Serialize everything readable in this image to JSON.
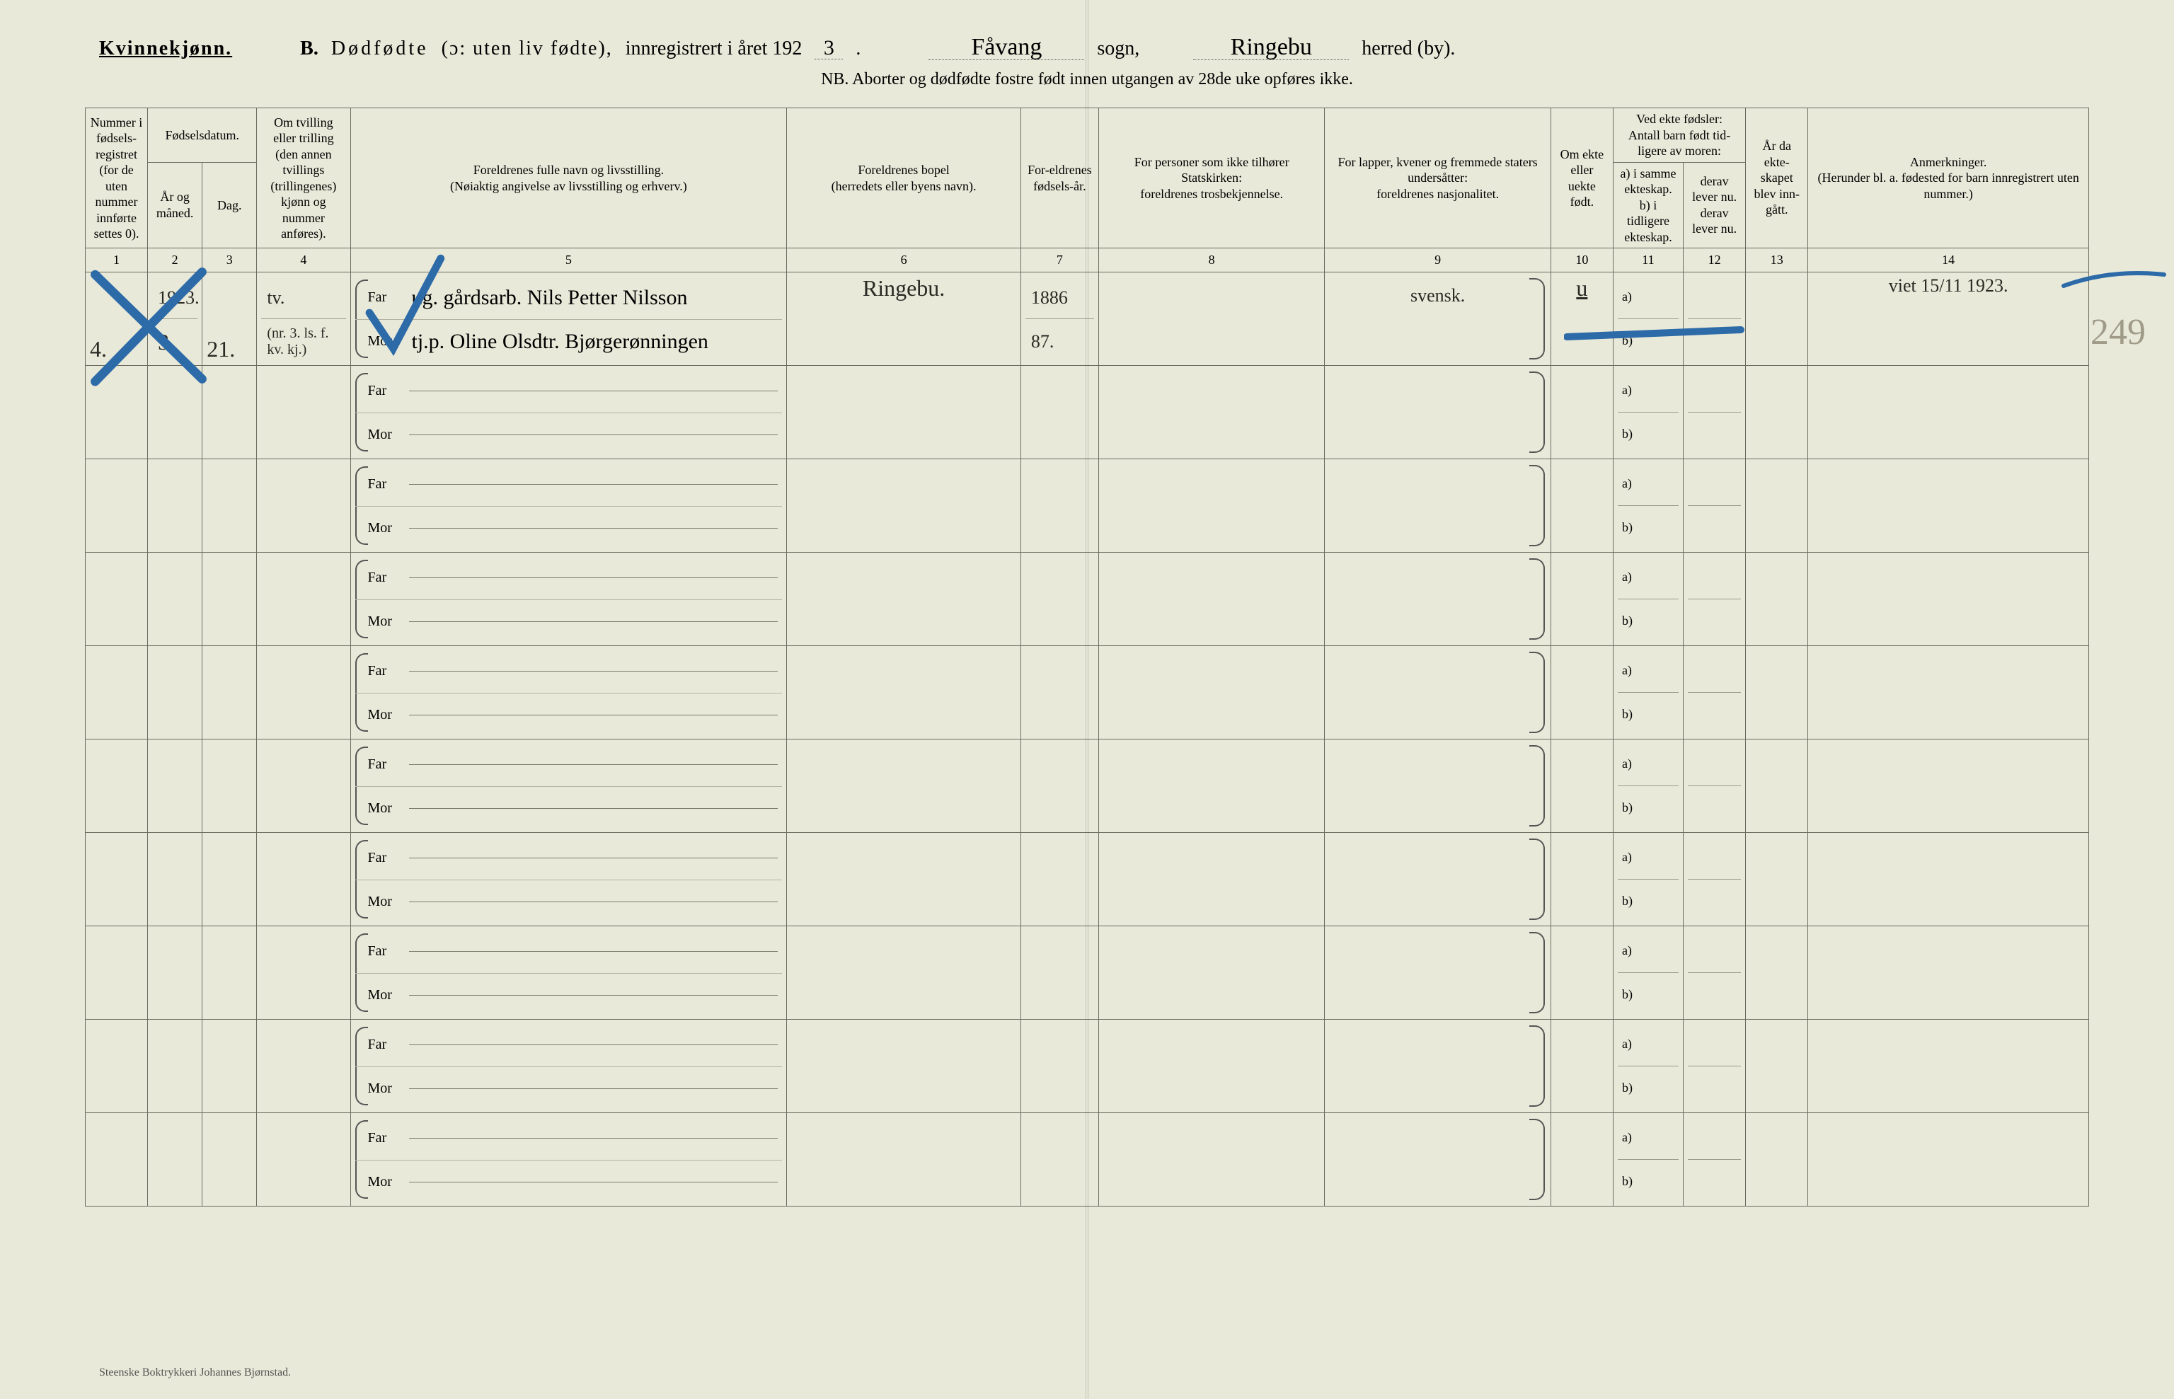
{
  "colors": {
    "paper": "#e8e9d9",
    "ink": "#2a2a24",
    "rule": "#6b6b5f",
    "pencil_blue": "#2c6aa8",
    "pencil_gray": "rgba(100,90,70,0.55)"
  },
  "header": {
    "gender_label": "Kvinnekjønn.",
    "section_letter": "B.",
    "title_main": "Dødfødte",
    "title_paren": "(ɔ: uten liv fødte),",
    "title_reg_prefix": "innregistrert i året 192",
    "year_suffix_hand": "3",
    "period": ".",
    "sogn_fill": "Fåvang",
    "sogn_label": "sogn,",
    "herred_fill": "Ringebu",
    "herred_label": "herred (by).",
    "nb_line": "NB.  Aborter og dødfødte fostre født innen utgangen av 28de uke opføres ikke."
  },
  "columns": {
    "h1": "Nummer i fødsels-registret (for de uten nummer innførte settes 0).",
    "h_fdat": "Fødselsdatum.",
    "h2": "År og måned.",
    "h3": "Dag.",
    "h4": "Om tvilling eller trilling (den annen tvillings (trillingenes) kjønn og nummer anføres).",
    "h5": "Foreldrenes fulle navn og livsstilling.\n(Nøiaktig angivelse av livsstilling og erhverv.)",
    "h6": "Foreldrenes bopel\n(herredets eller byens navn).",
    "h7": "For-eldrenes fødsels-år.",
    "h8": "For personer som ikke tilhører Statskirken:\nforeldrenes trosbekjennelse.",
    "h9": "For lapper, kvener og fremmede staters undersåtter:\nforeldrenes nasjonalitet.",
    "h10": "Om ekte eller uekte født.",
    "h_ved": "Ved ekte fødsler:\nAntall barn født tid-ligere av moren:",
    "h11": "a) i samme ekteskap.\nb) i tidligere ekteskap.",
    "h12": "derav lever nu.\nderav lever nu.",
    "h13": "År da ekte-skapet blev inn-gått.",
    "h14": "Anmerkninger.\n(Herunder bl. a. fødested for barn innregistrert uten nummer.)",
    "numbers": [
      "1",
      "2",
      "3",
      "4",
      "5",
      "6",
      "7",
      "8",
      "9",
      "10",
      "11",
      "12",
      "13",
      "14"
    ]
  },
  "row_labels": {
    "far": "Far",
    "mor": "Mor",
    "a": "a)",
    "b": "b)"
  },
  "entry": {
    "col1": "4.",
    "col2_top": "1923.",
    "col2_bot": "3",
    "col3": "21.",
    "col4_top": "tv.",
    "col4_bot": "(nr. 3. ls. f. kv. kj.)",
    "far_text": "ug. gårdsarb. Nils Petter Nilsson",
    "mor_text": "tj.p. Oline Olsdtr. Bjørgerønningen",
    "col6": "Ringebu.",
    "col7_far": "1886",
    "col7_mor": "87.",
    "col8": "",
    "col9": "svensk.",
    "col10": "u",
    "col14": "viet 15/11 1923."
  },
  "page_pencil_number": "249",
  "footer": "Steenske Boktrykkeri Johannes Bjørnstad."
}
